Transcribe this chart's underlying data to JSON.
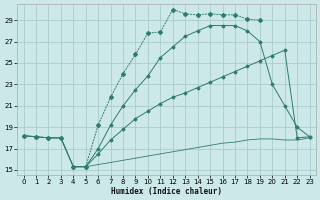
{
  "xlabel": "Humidex (Indice chaleur)",
  "bg_color": "#cde8e8",
  "grid_color": "#aacccc",
  "line_color": "#2e7d6e",
  "xlim": [
    -0.5,
    23.5
  ],
  "ylim": [
    14.5,
    30.5
  ],
  "xticks": [
    0,
    1,
    2,
    3,
    4,
    5,
    6,
    7,
    8,
    9,
    10,
    11,
    12,
    13,
    14,
    15,
    16,
    17,
    18,
    19,
    20,
    21,
    22,
    23
  ],
  "yticks": [
    15,
    17,
    19,
    21,
    23,
    25,
    27,
    29
  ],
  "line_top_x": [
    0,
    1,
    2,
    3,
    4,
    5,
    6,
    7,
    8,
    9,
    10,
    11,
    12,
    13,
    14,
    15,
    16,
    17,
    18,
    19
  ],
  "line_top_y": [
    18.2,
    18.1,
    18.0,
    18.0,
    15.3,
    15.3,
    19.2,
    21.8,
    24.0,
    25.8,
    27.8,
    27.9,
    30.0,
    29.6,
    29.5,
    29.6,
    29.5,
    29.5,
    29.1,
    29.0
  ],
  "line_mid_x": [
    0,
    1,
    2,
    3,
    4,
    5,
    6,
    7,
    8,
    9,
    10,
    11,
    12,
    13,
    14,
    15,
    16,
    17,
    18,
    19,
    20,
    21,
    22,
    23
  ],
  "line_mid_y": [
    18.2,
    18.1,
    18.0,
    18.0,
    15.3,
    15.3,
    17.0,
    19.2,
    21.0,
    22.5,
    23.8,
    25.5,
    26.5,
    27.5,
    28.0,
    28.5,
    28.5,
    28.5,
    28.0,
    27.0,
    23.0,
    21.0,
    19.0,
    18.1
  ],
  "line_low_x": [
    0,
    1,
    2,
    3,
    4,
    5,
    6,
    7,
    8,
    9,
    10,
    11,
    12,
    13,
    14,
    15,
    16,
    17,
    18,
    19,
    20,
    21,
    22,
    23
  ],
  "line_low_y": [
    18.2,
    18.1,
    18.0,
    18.0,
    15.3,
    15.3,
    16.5,
    17.8,
    18.8,
    19.8,
    20.5,
    21.2,
    21.8,
    22.2,
    22.7,
    23.2,
    23.7,
    24.2,
    24.7,
    25.2,
    25.7,
    26.2,
    18.0,
    18.1
  ],
  "line_bot_x": [
    4,
    5,
    6,
    7,
    8,
    9,
    10,
    11,
    12,
    13,
    14,
    15,
    16,
    17,
    18,
    19,
    20,
    21,
    22,
    23
  ],
  "line_bot_y": [
    15.3,
    15.3,
    15.5,
    15.7,
    15.9,
    16.1,
    16.3,
    16.5,
    16.7,
    16.9,
    17.1,
    17.3,
    17.5,
    17.6,
    17.8,
    17.9,
    17.9,
    17.8,
    17.8,
    18.0
  ]
}
